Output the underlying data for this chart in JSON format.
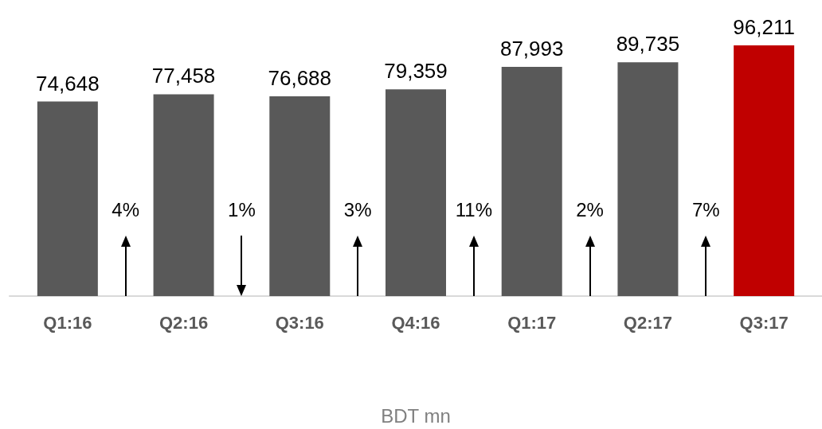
{
  "chart_data": {
    "type": "bar",
    "xlabel": "BDT mn",
    "categories": [
      "Q1:16",
      "Q2:16",
      "Q3:16",
      "Q4:16",
      "Q1:17",
      "Q2:17",
      "Q3:17"
    ],
    "values": [
      74648,
      77458,
      76688,
      79359,
      87993,
      89735,
      96211
    ],
    "colors": [
      "#595959",
      "#595959",
      "#595959",
      "#595959",
      "#595959",
      "#595959",
      "#c00000"
    ],
    "annotations": [
      "4%",
      "1%",
      "3%",
      "11%",
      "2%",
      "7%"
    ],
    "value_labels": [
      "74,648",
      "77,458",
      "76,688",
      "79,359",
      "87,993",
      "89,735",
      "96,211"
    ]
  }
}
